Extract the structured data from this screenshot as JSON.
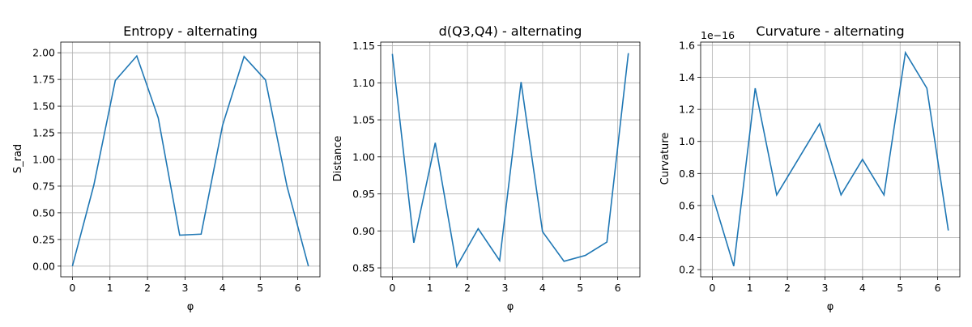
{
  "figure": {
    "background": "#ffffff",
    "line_color": "#1f77b4",
    "grid_color": "#b0b0b0"
  },
  "chart_data": [
    {
      "type": "line",
      "title": "Entropy - alternating",
      "xlabel": "φ",
      "ylabel": "S_rad",
      "offset_label": "",
      "grid": true,
      "xlim": [
        -0.31,
        6.59
      ],
      "ylim": [
        -0.1,
        2.1
      ],
      "xticks": [
        0,
        1,
        2,
        3,
        4,
        5,
        6
      ],
      "xtick_labels": [
        "0",
        "1",
        "2",
        "3",
        "4",
        "5",
        "6"
      ],
      "yticks": [
        0,
        0.25,
        0.5,
        0.75,
        1.0,
        1.25,
        1.5,
        1.75,
        2.0
      ],
      "ytick_labels": [
        "0.00",
        "0.25",
        "0.50",
        "0.75",
        "1.00",
        "1.25",
        "1.50",
        "1.75",
        "2.00"
      ],
      "series": [
        {
          "x": [
            0,
            0.571,
            1.142,
            1.714,
            2.285,
            2.856,
            3.427,
            3.998,
            4.57,
            5.141,
            5.712,
            6.283
          ],
          "y": [
            0.0,
            0.76,
            1.74,
            1.97,
            1.39,
            0.29,
            0.3,
            1.32,
            1.965,
            1.745,
            0.75,
            0.0
          ]
        }
      ]
    },
    {
      "type": "line",
      "title": "d(Q3,Q4) - alternating",
      "xlabel": "φ",
      "ylabel": "Distance",
      "offset_label": "",
      "grid": true,
      "xlim": [
        -0.31,
        6.59
      ],
      "ylim": [
        0.838,
        1.155
      ],
      "xticks": [
        0,
        1,
        2,
        3,
        4,
        5,
        6
      ],
      "xtick_labels": [
        "0",
        "1",
        "2",
        "3",
        "4",
        "5",
        "6"
      ],
      "yticks": [
        0.85,
        0.9,
        0.95,
        1.0,
        1.05,
        1.1,
        1.15
      ],
      "ytick_labels": [
        "0.85",
        "0.90",
        "0.95",
        "1.00",
        "1.05",
        "1.10",
        "1.15"
      ],
      "series": [
        {
          "x": [
            0,
            0.571,
            1.142,
            1.714,
            2.285,
            2.856,
            3.427,
            3.998,
            4.57,
            5.141,
            5.712,
            6.283
          ],
          "y": [
            1.139,
            0.884,
            1.019,
            0.852,
            0.903,
            0.86,
            1.101,
            0.899,
            0.859,
            0.867,
            0.885,
            1.14
          ]
        }
      ]
    },
    {
      "type": "line",
      "title": "Curvature - alternating",
      "xlabel": "φ",
      "ylabel": "Curvature",
      "offset_label": "1e−16",
      "grid": true,
      "xlim": [
        -0.31,
        6.59
      ],
      "ylim": [
        0.155,
        1.62
      ],
      "xticks": [
        0,
        1,
        2,
        3,
        4,
        5,
        6
      ],
      "xtick_labels": [
        "0",
        "1",
        "2",
        "3",
        "4",
        "5",
        "6"
      ],
      "yticks": [
        0.2,
        0.4,
        0.6,
        0.8,
        1.0,
        1.2,
        1.4,
        1.6
      ],
      "ytick_labels": [
        "0.2",
        "0.4",
        "0.6",
        "0.8",
        "1.0",
        "1.2",
        "1.4",
        "1.6"
      ],
      "series": [
        {
          "x": [
            0,
            0.571,
            1.142,
            1.714,
            2.285,
            2.856,
            3.427,
            3.998,
            4.57,
            5.141,
            5.712,
            6.283
          ],
          "y": [
            0.666,
            0.222,
            1.332,
            0.666,
            0.888,
            1.11,
            0.666,
            0.888,
            0.666,
            1.554,
            1.332,
            0.444
          ]
        }
      ]
    }
  ]
}
